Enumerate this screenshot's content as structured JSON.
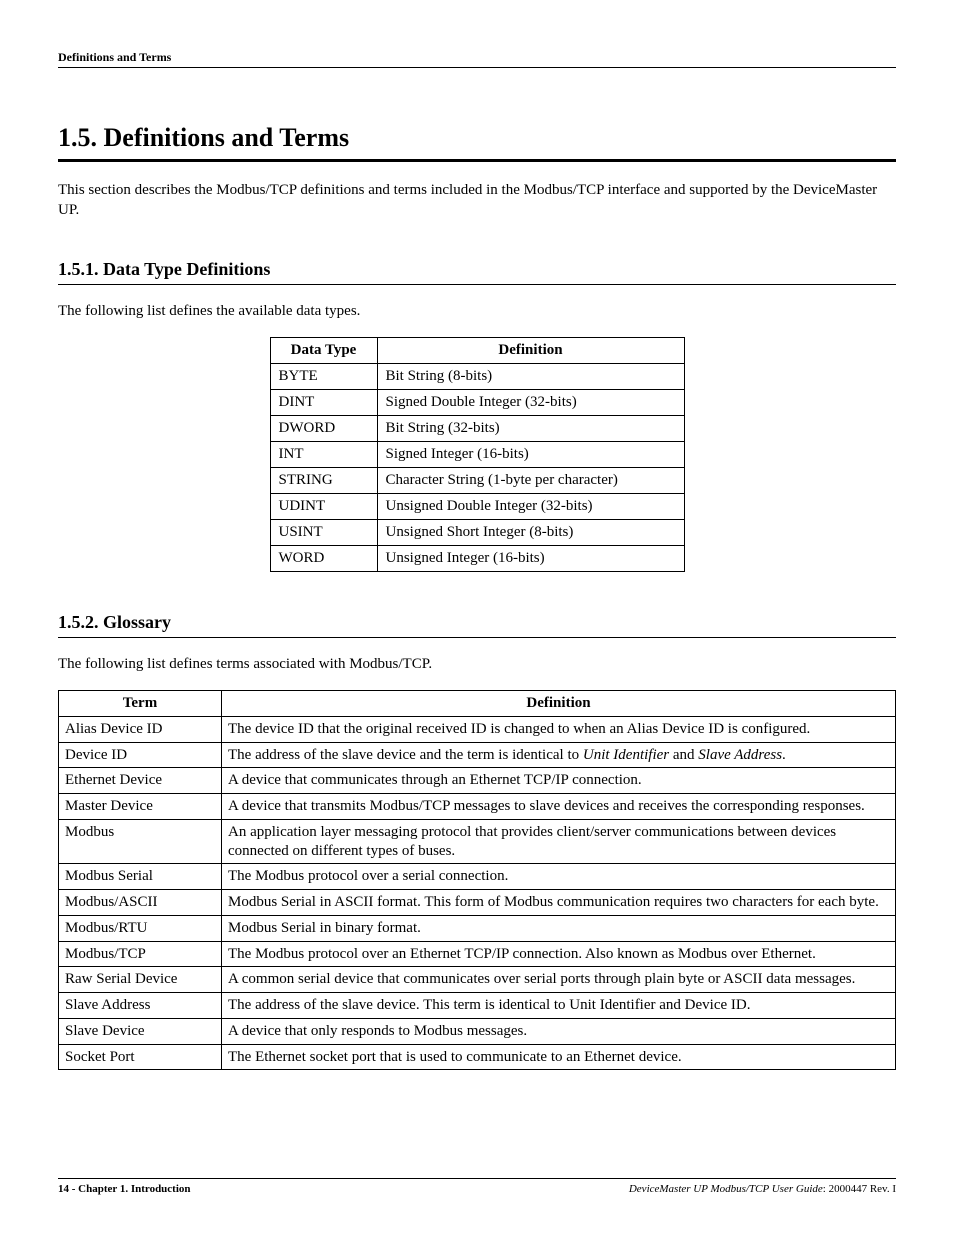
{
  "running_header": "Definitions and Terms",
  "section": {
    "title": "1.5. Definitions and Terms",
    "intro": "This section describes the Modbus/TCP definitions and terms included in the Modbus/TCP interface and supported by the DeviceMaster UP."
  },
  "sub1": {
    "title": "1.5.1. Data Type Definitions",
    "lead": "The following list defines the available data types.",
    "table": {
      "headers": [
        "Data Type",
        "Definition"
      ],
      "rows": [
        [
          "BYTE",
          "Bit String (8-bits)"
        ],
        [
          "DINT",
          "Signed Double Integer (32-bits)"
        ],
        [
          "DWORD",
          "Bit String (32-bits)"
        ],
        [
          "INT",
          "Signed Integer (16-bits)"
        ],
        [
          "STRING",
          "Character String (1-byte per character)"
        ],
        [
          "UDINT",
          "Unsigned Double Integer (32-bits)"
        ],
        [
          "USINT",
          "Unsigned Short Integer (8-bits)"
        ],
        [
          "WORD",
          "Unsigned Integer (16-bits)"
        ]
      ]
    }
  },
  "sub2": {
    "title": "1.5.2. Glossary",
    "lead": "The following list defines terms associated with Modbus/TCP.",
    "table": {
      "headers": [
        "Term",
        "Definition"
      ],
      "rows": [
        {
          "term": "Alias Device ID",
          "def_html": "The device ID that the original received ID is changed to when an Alias Device ID is configured."
        },
        {
          "term": "Device ID",
          "def_html": "The address of the slave device and the term is identical to <span class=\"ital\">Unit Identifier</span> and <span class=\"ital\">Slave Address</span>."
        },
        {
          "term": "Ethernet Device",
          "def_html": "A device that communicates through an Ethernet TCP/IP connection."
        },
        {
          "term": "Master Device",
          "def_html": "A device that transmits Modbus/TCP messages to slave devices and receives the corresponding responses."
        },
        {
          "term": "Modbus",
          "def_html": "An application layer messaging protocol that provides client/server communications between devices connected on different types of buses."
        },
        {
          "term": "Modbus Serial",
          "def_html": "The Modbus protocol over a serial connection."
        },
        {
          "term": "Modbus/ASCII",
          "def_html": "Modbus Serial in ASCII format. This form of Modbus communication requires two characters for each byte."
        },
        {
          "term": "Modbus/RTU",
          "def_html": "Modbus Serial in binary format."
        },
        {
          "term": "Modbus/TCP",
          "def_html": "The Modbus protocol over an Ethernet TCP/IP connection. Also known as Modbus over Ethernet."
        },
        {
          "term": "Raw Serial Device",
          "def_html": "A common serial device that communicates over serial ports through plain byte or ASCII data messages."
        },
        {
          "term": "Slave Address",
          "def_html": "The address of the slave device. This term is identical to Unit Identifier and Device ID."
        },
        {
          "term": "Slave Device",
          "def_html": "A device that only responds to Modbus messages."
        },
        {
          "term": "Socket Port",
          "def_html": "The Ethernet socket port that is used to communicate to an Ethernet device."
        }
      ]
    }
  },
  "footer": {
    "left": "14 - Chapter 1. Introduction",
    "right_italic": "DeviceMaster UP Modbus/TCP User Guide",
    "right_plain": ": 2000447 Rev. I"
  }
}
